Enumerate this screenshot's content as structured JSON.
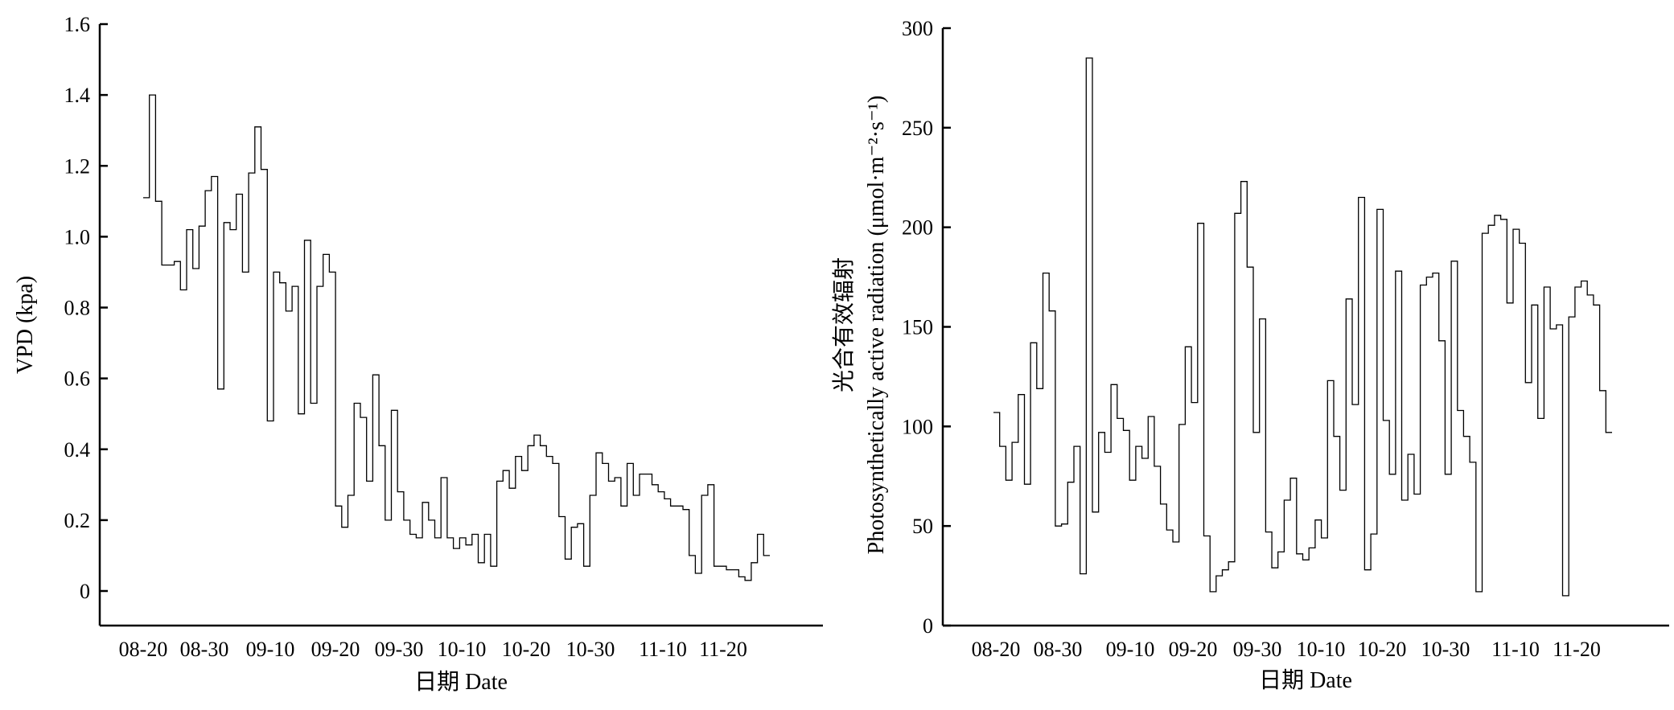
{
  "chart_data": [
    {
      "type": "line",
      "step": true,
      "xlabel": "日期 Date",
      "ylabel": "VPD (kpa)",
      "ylim": [
        -0.1,
        1.6
      ],
      "yticks": [
        "0",
        "0.2",
        "0.4",
        "0.6",
        "0.8",
        "1.0",
        "1.2",
        "1.4",
        "1.6"
      ],
      "xticks": [
        "08-20",
        "08-30",
        "09-10",
        "09-20",
        "09-30",
        "10-10",
        "10-20",
        "10-30",
        "11-10",
        "11-20"
      ],
      "grid": false,
      "series": [
        {
          "values": [
            1.11,
            1.4,
            1.1,
            0.92,
            0.92,
            0.93,
            0.85,
            1.02,
            0.91,
            1.03,
            1.13,
            1.17,
            0.57,
            1.04,
            1.02,
            1.12,
            0.9,
            1.18,
            1.31,
            1.19,
            0.48,
            0.9,
            0.87,
            0.79,
            0.86,
            0.5,
            0.99,
            0.53,
            0.86,
            0.95,
            0.9,
            0.24,
            0.18,
            0.27,
            0.53,
            0.49,
            0.31,
            0.61,
            0.41,
            0.2,
            0.51,
            0.28,
            0.2,
            0.16,
            0.15,
            0.25,
            0.2,
            0.15,
            0.32,
            0.15,
            0.12,
            0.15,
            0.13,
            0.16,
            0.08,
            0.16,
            0.07,
            0.31,
            0.34,
            0.29,
            0.38,
            0.34,
            0.41,
            0.44,
            0.41,
            0.38,
            0.36,
            0.21,
            0.09,
            0.18,
            0.19,
            0.07,
            0.27,
            0.39,
            0.36,
            0.31,
            0.32,
            0.24,
            0.36,
            0.27,
            0.33,
            0.33,
            0.3,
            0.28,
            0.26,
            0.24,
            0.24,
            0.23,
            0.1,
            0.05,
            0.27,
            0.3,
            0.07,
            0.07,
            0.06,
            0.06,
            0.04,
            0.03,
            0.08,
            0.16,
            0.1
          ]
        }
      ]
    },
    {
      "type": "line",
      "step": true,
      "xlabel": "日期 Date",
      "ylabel": "光合有效辐射",
      "ylabel2": "Photosynthetically active radiation (μmol·m⁻²·s⁻¹)",
      "ylim": [
        0,
        300
      ],
      "yticks": [
        "0",
        "50",
        "100",
        "150",
        "200",
        "250",
        "300"
      ],
      "xticks": [
        "08-20",
        "08-30",
        "09-10",
        "09-20",
        "09-30",
        "10-10",
        "10-20",
        "10-30",
        "11-10",
        "11-20"
      ],
      "grid": false,
      "series": [
        {
          "values": [
            107,
            90,
            73,
            92,
            116,
            71,
            142,
            119,
            177,
            158,
            50,
            51,
            72,
            90,
            26,
            285,
            57,
            97,
            87,
            121,
            104,
            98,
            73,
            90,
            84,
            105,
            80,
            61,
            48,
            42,
            101,
            140,
            112,
            202,
            45,
            17,
            25,
            28,
            32,
            207,
            223,
            180,
            97,
            154,
            47,
            29,
            37,
            63,
            74,
            36,
            33,
            39,
            53,
            44,
            123,
            95,
            68,
            164,
            111,
            215,
            28,
            46,
            209,
            103,
            76,
            178,
            63,
            86,
            66,
            171,
            175,
            177,
            143,
            76,
            183,
            108,
            95,
            82,
            17,
            197,
            201,
            206,
            204,
            162,
            199,
            192,
            122,
            161,
            104,
            170,
            149,
            151,
            15,
            155,
            170,
            173,
            166,
            161,
            118,
            97
          ]
        }
      ]
    }
  ]
}
